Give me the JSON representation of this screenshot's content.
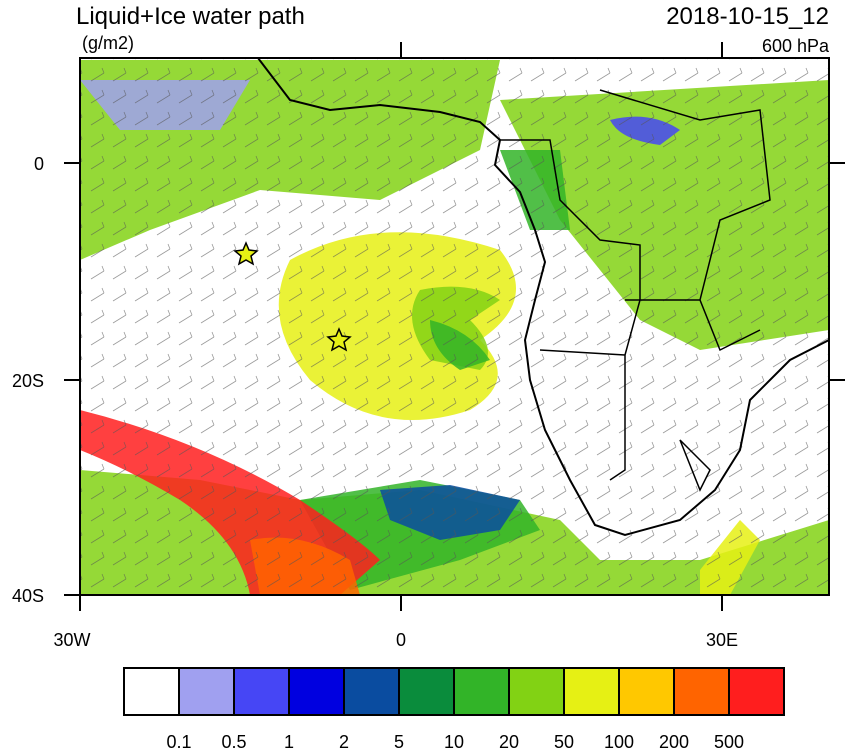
{
  "header": {
    "title": "Liquid+Ice water path",
    "units": "(g/m2)",
    "date": "2018-10-15_12",
    "level": "600 hPa"
  },
  "axes": {
    "y_labels": [
      "0",
      "20S",
      "40S"
    ],
    "x_labels": [
      "30W",
      "0",
      "30E"
    ]
  },
  "colorbar": {
    "colors": [
      "#ffffff",
      "#a0a0f0",
      "#4646f5",
      "#0000e0",
      "#0a4ca0",
      "#0a8c3c",
      "#32b428",
      "#82d214",
      "#e6f014",
      "#ffc800",
      "#ff6400",
      "#ff1e1e"
    ],
    "labels": [
      "0.1",
      "0.5",
      "1",
      "2",
      "5",
      "10",
      "20",
      "50",
      "100",
      "200",
      "500"
    ]
  }
}
